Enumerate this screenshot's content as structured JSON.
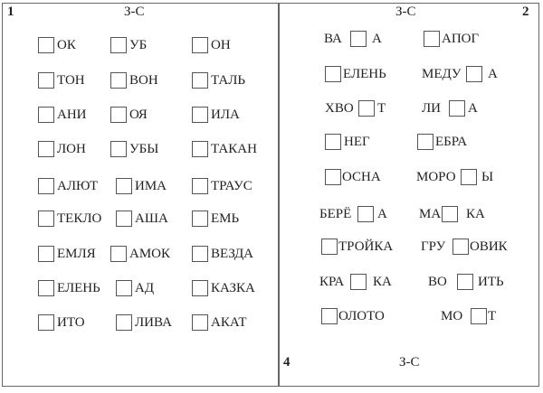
{
  "page1": {
    "number": "1",
    "heading": "З-С",
    "items": [
      {
        "pre": "",
        "post": "ОК"
      },
      {
        "pre": "",
        "post": "УБ"
      },
      {
        "pre": "",
        "post": "ОН"
      },
      {
        "pre": "",
        "post": "ТОН"
      },
      {
        "pre": "",
        "post": "ВОН"
      },
      {
        "pre": "",
        "post": "ТАЛЬ"
      },
      {
        "pre": "",
        "post": "АНИ"
      },
      {
        "pre": "",
        "post": "ОЯ"
      },
      {
        "pre": "",
        "post": "ИЛА"
      },
      {
        "pre": "",
        "post": "ЛОН"
      },
      {
        "pre": "",
        "post": "УБЫ"
      },
      {
        "pre": "",
        "post": "ТАКАН"
      },
      {
        "pre": "",
        "post": "АЛЮТ"
      },
      {
        "pre": "",
        "post": "ИМА"
      },
      {
        "pre": "",
        "post": "ТРАУС"
      },
      {
        "pre": "",
        "post": "ТЕКЛО"
      },
      {
        "pre": "",
        "post": "АША"
      },
      {
        "pre": "",
        "post": "ЕМЬ"
      },
      {
        "pre": "",
        "post": "ЕМЛЯ"
      },
      {
        "pre": "",
        "post": "АМОК"
      },
      {
        "pre": "",
        "post": "ВЕЗДА"
      },
      {
        "pre": "",
        "post": "ЕЛЕНЬ"
      },
      {
        "pre": "",
        "post": "АД"
      },
      {
        "pre": "",
        "post": "КАЗКА"
      },
      {
        "pre": "",
        "post": "ИТО"
      },
      {
        "pre": "",
        "post": "ЛИВА"
      },
      {
        "pre": "",
        "post": "АКАТ"
      }
    ]
  },
  "page2": {
    "number": "2",
    "heading": "З-С",
    "items": [
      {
        "pre": "ВА",
        "post": "А"
      },
      {
        "pre": "",
        "post": "АПОГ"
      },
      {
        "pre": "",
        "post": "ЕЛЕНЬ"
      },
      {
        "pre": "МЕДУ",
        "post": "А"
      },
      {
        "pre": "ХВО",
        "post": "Т"
      },
      {
        "pre": "ЛИ",
        "post": "А"
      },
      {
        "pre": "",
        "post": "НЕГ"
      },
      {
        "pre": "",
        "post": "ЕБРА"
      },
      {
        "pre": "",
        "post": "ОСНА"
      },
      {
        "pre": "МОРО",
        "post": "Ы"
      },
      {
        "pre": "БЕРЁ",
        "post": "А"
      },
      {
        "pre": "МА",
        "post": "КА"
      },
      {
        "pre": "",
        "post": "ТРОЙКА"
      },
      {
        "pre": "ГРУ",
        "post": "ОВИК"
      },
      {
        "pre": "КРА",
        "post": "КА"
      },
      {
        "pre": "ВО",
        "post": "ИТЬ"
      },
      {
        "pre": "",
        "post": "ОЛОТО"
      },
      {
        "pre": "МО",
        "post": "Т"
      }
    ]
  },
  "page4": {
    "number": "4",
    "heading": "З-С"
  }
}
